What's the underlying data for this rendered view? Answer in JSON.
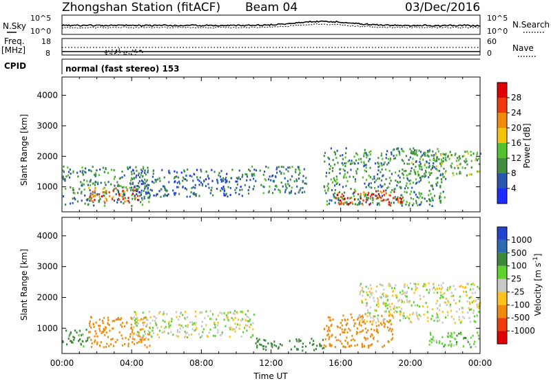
{
  "header": {
    "station": "Zhongshan Station (fitACF)",
    "beam": "Beam 04",
    "date": "03/Dec/2016"
  },
  "top_panel": {
    "left_label": "N.Sky",
    "left_ticks": [
      "10^5",
      "10^0"
    ],
    "right_label": "N.Search",
    "right_ticks": [
      "10^5",
      "10^0"
    ]
  },
  "freq_panel": {
    "left_label_1": "Freq.",
    "left_label_2": "[MHz]",
    "left_ticks": [
      "18",
      "8"
    ],
    "right_label": "Nave",
    "right_ticks": [
      "60",
      "0"
    ]
  },
  "cpid": {
    "label": "CPID",
    "mode": "normal (fast stereo) 153"
  },
  "chart_data": [
    {
      "type": "heatmap",
      "title": "",
      "xlabel": "",
      "ylabel": "Slant Range [km]",
      "x_ticks": [
        "00:00",
        "04:00",
        "08:00",
        "12:00",
        "16:00",
        "20:00",
        "00:00"
      ],
      "y_ticks": [
        "1000",
        "2000",
        "3000",
        "4000"
      ],
      "ylim": [
        180,
        4600
      ],
      "colorbar": {
        "label": "Power [dB]",
        "ticks": [
          "4",
          "8",
          "12",
          "16",
          "20",
          "24",
          "28"
        ],
        "range": [
          0,
          32
        ],
        "colors": [
          "#1e2cff",
          "#2b56b0",
          "#3f8f3f",
          "#55c22d",
          "#f4c20b",
          "#f08a0b",
          "#ef3a0b",
          "#e00000"
        ]
      },
      "series": [
        {
          "x_start": "00:00",
          "x_end": "05:00",
          "range_min": 400,
          "range_max": 1700,
          "value_db": 9
        },
        {
          "x_start": "01:30",
          "x_end": "04:30",
          "range_min": 500,
          "range_max": 1000,
          "value_db": 24
        },
        {
          "x_start": "04:00",
          "x_end": "10:30",
          "range_min": 700,
          "range_max": 1600,
          "value_db": 7
        },
        {
          "x_start": "10:30",
          "x_end": "14:00",
          "range_min": 800,
          "range_max": 1700,
          "value_db": 9
        },
        {
          "x_start": "15:00",
          "x_end": "22:00",
          "range_min": 400,
          "range_max": 2300,
          "value_db": 10
        },
        {
          "x_start": "15:30",
          "x_end": "19:30",
          "range_min": 450,
          "range_max": 900,
          "value_db": 27
        },
        {
          "x_start": "20:00",
          "x_end": "24:00",
          "range_min": 1400,
          "range_max": 2200,
          "value_db": 12
        }
      ]
    },
    {
      "type": "heatmap",
      "title": "",
      "xlabel": "Time UT",
      "ylabel": "Slant Range [km]",
      "x_ticks": [
        "00:00",
        "04:00",
        "08:00",
        "12:00",
        "16:00",
        "20:00",
        "00:00"
      ],
      "y_ticks": [
        "1000",
        "2000",
        "3000",
        "4000"
      ],
      "ylim": [
        180,
        4600
      ],
      "colorbar": {
        "label": "Velocity [m s^-1]",
        "ticks": [
          "1000",
          "500",
          "100",
          "25",
          "-25",
          "-100",
          "-500",
          "-1000"
        ],
        "colors": [
          "#2244cc",
          "#2b6cb0",
          "#3a8a3a",
          "#5ed22d",
          "#c8c8c8",
          "#ffc21a",
          "#f08a0b",
          "#ef3a0b",
          "#e00000"
        ]
      },
      "series": [
        {
          "x_start": "00:00",
          "x_end": "01:30",
          "range_min": 400,
          "range_max": 1000,
          "velocity": 150
        },
        {
          "x_start": "01:30",
          "x_end": "05:00",
          "range_min": 400,
          "range_max": 1400,
          "velocity": -300
        },
        {
          "x_start": "04:00",
          "x_end": "11:00",
          "range_min": 700,
          "range_max": 1600,
          "velocity": 0
        },
        {
          "x_start": "11:00",
          "x_end": "15:00",
          "range_min": 300,
          "range_max": 700,
          "velocity": 200
        },
        {
          "x_start": "15:00",
          "x_end": "19:00",
          "range_min": 400,
          "range_max": 1500,
          "velocity": -300
        },
        {
          "x_start": "17:00",
          "x_end": "24:00",
          "range_min": 1200,
          "range_max": 2500,
          "velocity": 0
        },
        {
          "x_start": "21:00",
          "x_end": "24:00",
          "range_min": 400,
          "range_max": 900,
          "velocity": 60
        }
      ]
    }
  ]
}
